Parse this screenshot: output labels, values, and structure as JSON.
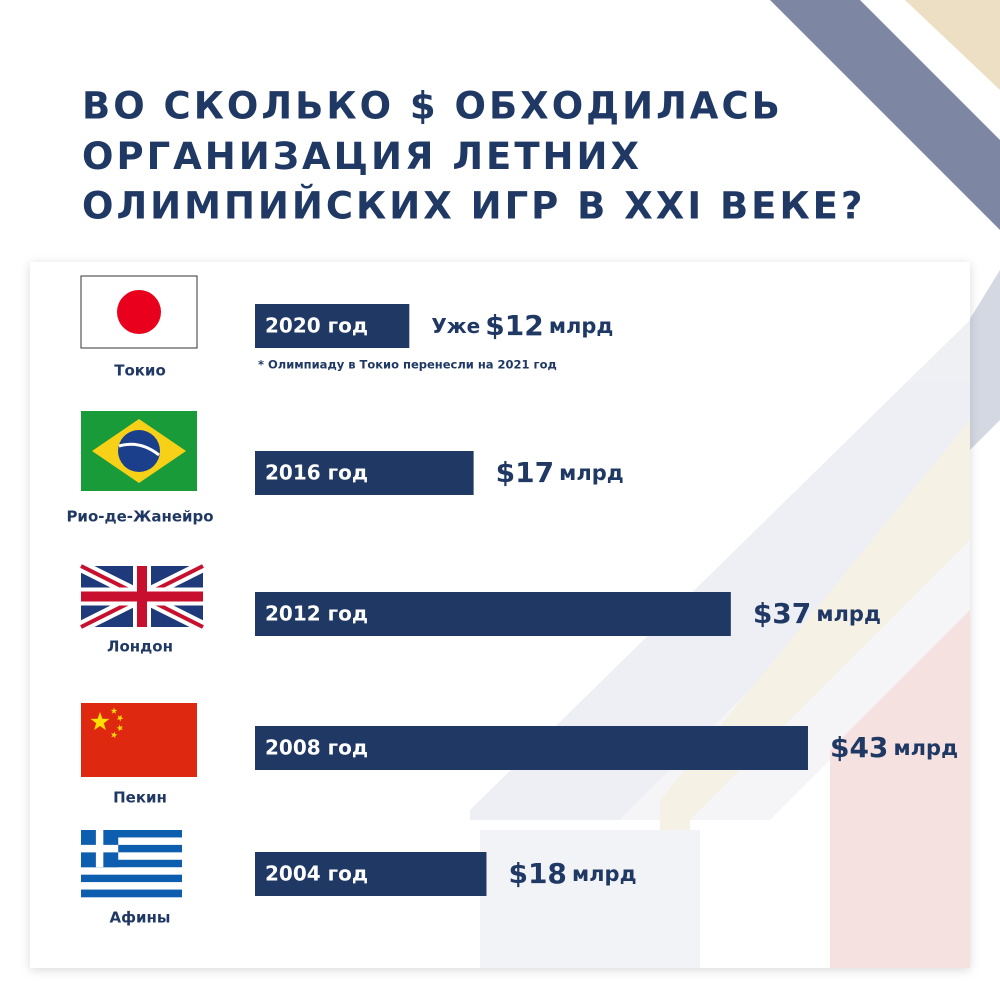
{
  "chart_data": {
    "type": "bar",
    "title": {
      "line1": "ВО СКОЛЬКО $ ОБХОДИЛАСЬ",
      "line2": "ОРГАНИЗАЦИЯ",
      "line2_bold": "ЛЕТНИХ",
      "line3": "ОЛИМПИЙСКИХ ИГР В XXI ВЕКЕ?"
    },
    "categories": [
      "2020 год",
      "2016 год",
      "2012 год",
      "2008 год",
      "2004 год"
    ],
    "cities": [
      "Токио",
      "Рио-де-Жанейро",
      "Лондон",
      "Пекин",
      "Афины"
    ],
    "values": [
      12,
      17,
      37,
      43,
      18
    ],
    "value_labels": [
      "$12",
      "$17",
      "$37",
      "$43",
      "$18"
    ],
    "unit_label": "млрд",
    "prefix_label": "Уже",
    "footnote": "* Олимпиаду в Токио перенесли на 2021 год",
    "color": "#1f3864"
  }
}
